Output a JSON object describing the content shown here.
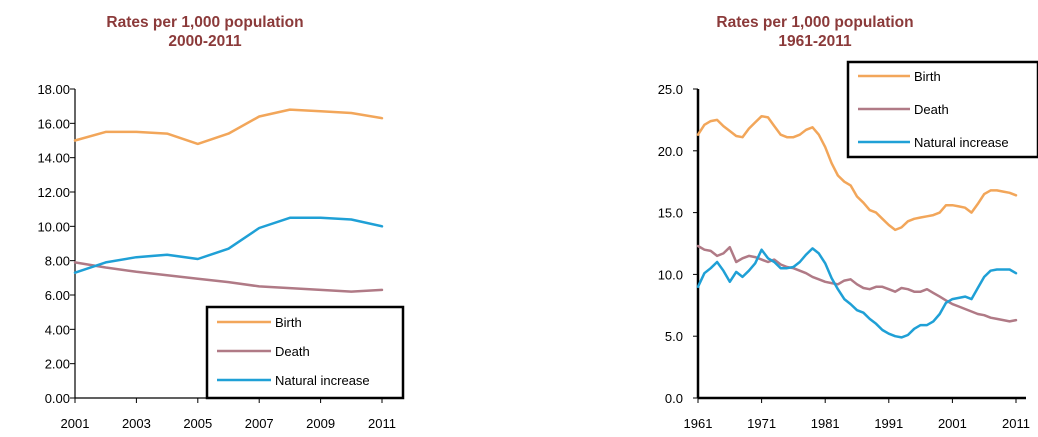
{
  "chart_data": [
    {
      "type": "line",
      "title": "Rates per 1,000 population",
      "subtitle": "2000-2011",
      "x": [
        2001,
        2002,
        2003,
        2004,
        2005,
        2006,
        2007,
        2008,
        2009,
        2010,
        2011
      ],
      "xticks": [
        "2001",
        "2003",
        "2005",
        "2007",
        "2009",
        "2011"
      ],
      "ylim": [
        0,
        18
      ],
      "yticks": [
        "0.00",
        "2.00",
        "4.00",
        "6.00",
        "8.00",
        "10.00",
        "12.00",
        "14.00",
        "16.00",
        "18.00"
      ],
      "grid": false,
      "legend_position": "bottom-right",
      "series": [
        {
          "name": "Birth",
          "color": "#F2A65A",
          "values": [
            15.0,
            15.5,
            15.5,
            15.4,
            14.8,
            15.4,
            16.4,
            16.8,
            16.7,
            16.6,
            16.3
          ]
        },
        {
          "name": "Death",
          "color": "#B07A86",
          "values": [
            7.9,
            7.6,
            7.35,
            7.15,
            6.95,
            6.75,
            6.5,
            6.4,
            6.3,
            6.2,
            6.3
          ]
        },
        {
          "name": "Natural increase",
          "color": "#1FA0D6",
          "values": [
            7.3,
            7.9,
            8.2,
            8.35,
            8.1,
            8.7,
            9.9,
            10.5,
            10.5,
            10.4,
            10.0
          ]
        }
      ]
    },
    {
      "type": "line",
      "title": "Rates per 1,000 population",
      "subtitle": "1961-2011",
      "x": [
        1961,
        1962,
        1963,
        1964,
        1965,
        1966,
        1967,
        1968,
        1969,
        1970,
        1971,
        1972,
        1973,
        1974,
        1975,
        1976,
        1977,
        1978,
        1979,
        1980,
        1981,
        1982,
        1983,
        1984,
        1985,
        1986,
        1987,
        1988,
        1989,
        1990,
        1991,
        1992,
        1993,
        1994,
        1995,
        1996,
        1997,
        1998,
        1999,
        2000,
        2001,
        2002,
        2003,
        2004,
        2005,
        2006,
        2007,
        2008,
        2009,
        2010,
        2011
      ],
      "xticks": [
        "1961",
        "1971",
        "1981",
        "1991",
        "2001",
        "2011"
      ],
      "ylim": [
        0,
        25
      ],
      "yticks": [
        "0.0",
        "5.0",
        "10.0",
        "15.0",
        "20.0",
        "25.0"
      ],
      "grid": false,
      "legend_position": "top-right",
      "series": [
        {
          "name": "Birth",
          "color": "#F2A65A",
          "values": [
            21.3,
            22.1,
            22.4,
            22.5,
            22.0,
            21.6,
            21.2,
            21.1,
            21.8,
            22.3,
            22.8,
            22.7,
            22.0,
            21.3,
            21.1,
            21.1,
            21.3,
            21.7,
            21.9,
            21.3,
            20.3,
            19.0,
            18.0,
            17.5,
            17.2,
            16.3,
            15.8,
            15.2,
            15.0,
            14.5,
            14.0,
            13.6,
            13.8,
            14.3,
            14.5,
            14.6,
            14.7,
            14.8,
            15.0,
            15.6,
            15.6,
            15.5,
            15.4,
            15.0,
            15.7,
            16.5,
            16.8,
            16.8,
            16.7,
            16.6,
            16.4
          ]
        },
        {
          "name": "Death",
          "color": "#B07A86",
          "values": [
            12.3,
            12.0,
            11.9,
            11.5,
            11.7,
            12.2,
            11.0,
            11.3,
            11.5,
            11.4,
            11.2,
            11.0,
            11.2,
            10.8,
            10.6,
            10.5,
            10.3,
            10.1,
            9.8,
            9.6,
            9.4,
            9.3,
            9.2,
            9.5,
            9.6,
            9.2,
            8.9,
            8.8,
            9.0,
            9.0,
            8.8,
            8.6,
            8.9,
            8.8,
            8.6,
            8.6,
            8.8,
            8.5,
            8.2,
            7.9,
            7.6,
            7.4,
            7.2,
            7.0,
            6.8,
            6.7,
            6.5,
            6.4,
            6.3,
            6.2,
            6.3
          ]
        },
        {
          "name": "Natural increase",
          "color": "#1FA0D6",
          "values": [
            9.0,
            10.1,
            10.5,
            11.0,
            10.3,
            9.4,
            10.2,
            9.8,
            10.3,
            10.9,
            12.0,
            11.3,
            11.0,
            10.5,
            10.5,
            10.6,
            11.0,
            11.6,
            12.1,
            11.7,
            10.9,
            9.7,
            8.8,
            8.0,
            7.6,
            7.1,
            6.9,
            6.4,
            6.0,
            5.5,
            5.2,
            5.0,
            4.9,
            5.1,
            5.6,
            5.9,
            5.9,
            6.2,
            6.8,
            7.7,
            8.0,
            8.1,
            8.2,
            8.0,
            8.9,
            9.8,
            10.3,
            10.4,
            10.4,
            10.4,
            10.1
          ]
        }
      ]
    }
  ]
}
